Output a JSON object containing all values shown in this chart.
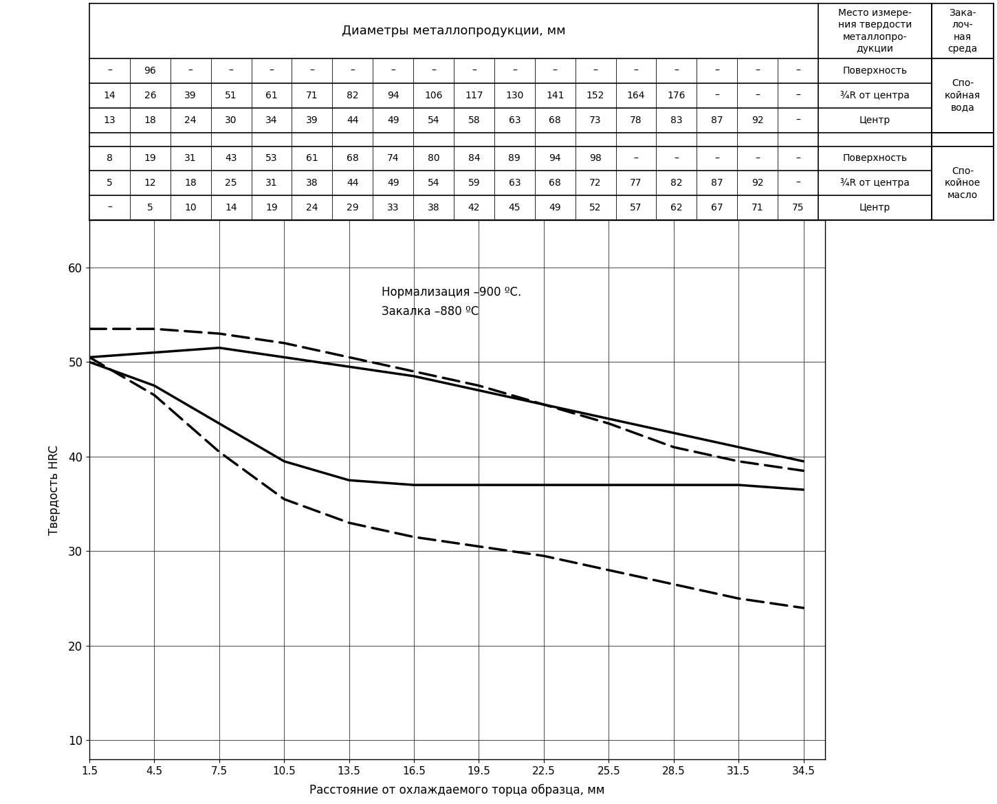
{
  "x_ticks": [
    1.5,
    4.5,
    7.5,
    10.5,
    13.5,
    16.5,
    19.5,
    22.5,
    25.5,
    28.5,
    31.5,
    34.5
  ],
  "y_ticks": [
    10,
    20,
    30,
    40,
    50,
    60
  ],
  "xlim": [
    1.5,
    35.5
  ],
  "ylim": [
    8,
    65
  ],
  "xlabel": "Расстояние от охлаждаемого торца образца, мм",
  "ylabel": "Твердость HRC",
  "annotation_line1": "Нормализация –900 ºC.",
  "annotation_line2": "Закалка –880 ºC",
  "curve_upper_solid": [
    50.5,
    51.0,
    51.5,
    50.5,
    49.5,
    48.5,
    47.0,
    45.5,
    44.0,
    42.5,
    41.0,
    39.5
  ],
  "curve_lower_solid": [
    50.0,
    47.5,
    43.5,
    39.5,
    37.5,
    37.0,
    37.0,
    37.0,
    37.0,
    37.0,
    37.0,
    36.5
  ],
  "curve_upper_dashed": [
    53.5,
    53.5,
    53.0,
    52.0,
    50.5,
    49.0,
    47.5,
    45.5,
    43.5,
    41.0,
    39.5,
    38.5
  ],
  "curve_lower_dashed": [
    50.5,
    46.5,
    40.5,
    35.5,
    33.0,
    31.5,
    30.5,
    29.5,
    28.0,
    26.5,
    25.0,
    24.0
  ],
  "table_header_title": "Диаметры металлопродукции, мм",
  "col_header_1": "Место измере-\nния твердости\nметаллопро-\nдукции",
  "col_header_2": "Зака-\nлоч-\nная\nсреда",
  "label_surface": "Поверхность",
  "label_34R": "¾R от центра",
  "label_center": "Центр",
  "label_water": "Спо-\nкойная\nвода",
  "label_oil": "Спо-\nкойное\nмасло",
  "water_row1": [
    "–",
    "96",
    "–",
    "–",
    "–",
    "–",
    "–",
    "–",
    "–",
    "–",
    "–",
    "–",
    "–",
    "–",
    "–",
    "–",
    "–",
    "–"
  ],
  "water_row2": [
    "14",
    "26",
    "39",
    "51",
    "61",
    "71",
    "82",
    "94",
    "106",
    "117",
    "130",
    "141",
    "152",
    "164",
    "176",
    "–",
    "–",
    "–"
  ],
  "water_row3": [
    "13",
    "18",
    "24",
    "30",
    "34",
    "39",
    "44",
    "49",
    "54",
    "58",
    "63",
    "68",
    "73",
    "78",
    "83",
    "87",
    "92",
    "–"
  ],
  "oil_row1": [
    "8",
    "19",
    "31",
    "43",
    "53",
    "61",
    "68",
    "74",
    "80",
    "84",
    "89",
    "94",
    "98",
    "–",
    "–",
    "–",
    "–",
    "–"
  ],
  "oil_row2": [
    "5",
    "12",
    "18",
    "25",
    "31",
    "38",
    "44",
    "49",
    "54",
    "59",
    "63",
    "68",
    "72",
    "77",
    "82",
    "87",
    "92",
    "–"
  ],
  "oil_row3": [
    "–",
    "5",
    "10",
    "14",
    "19",
    "24",
    "29",
    "33",
    "38",
    "42",
    "45",
    "49",
    "52",
    "57",
    "62",
    "67",
    "71",
    "75"
  ]
}
